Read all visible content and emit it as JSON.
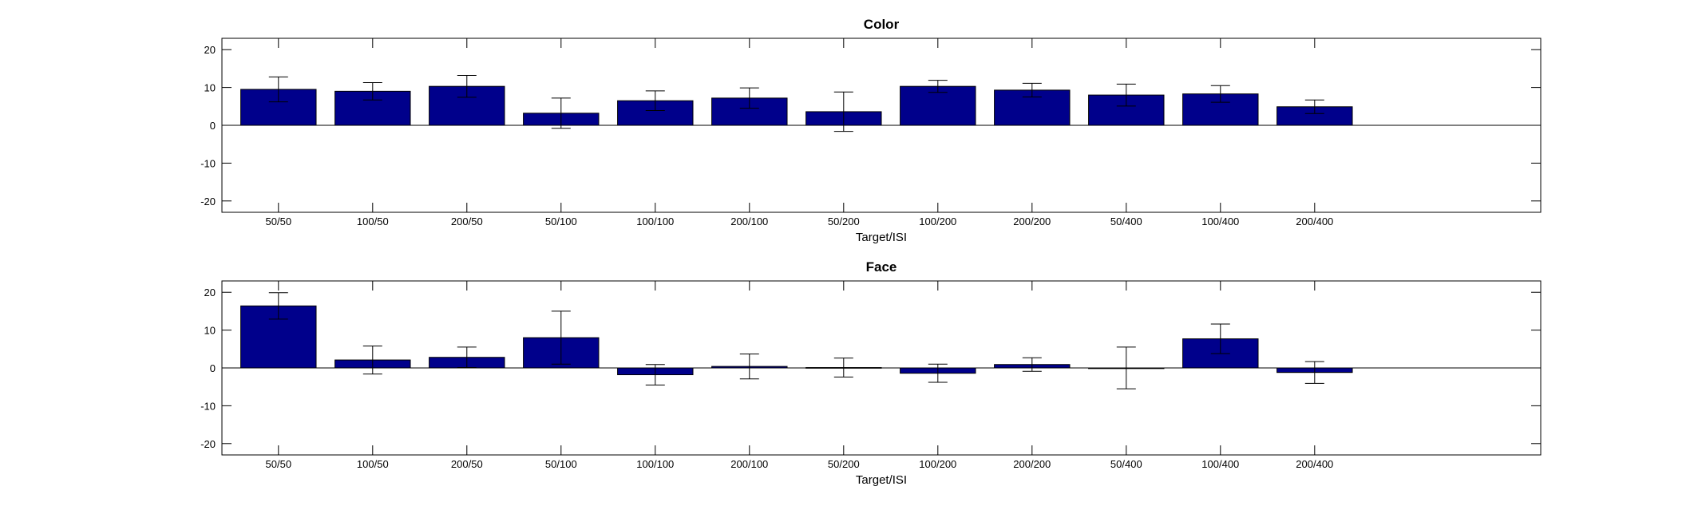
{
  "chart_data": [
    {
      "type": "bar",
      "title": "Color",
      "xlabel": "Target/ISI",
      "ylabel": "",
      "ylim": [
        -23,
        23
      ],
      "yticks": [
        -20,
        -10,
        0,
        10,
        20
      ],
      "xlim": [
        0.4,
        14.4
      ],
      "categories": [
        "50/50",
        "100/50",
        "200/50",
        "50/100",
        "100/100",
        "200/100",
        "50/200",
        "100/200",
        "200/200",
        "50/400",
        "100/400",
        "200/400"
      ],
      "values": [
        9.5,
        9.0,
        10.3,
        3.2,
        6.5,
        7.2,
        3.6,
        10.3,
        9.3,
        8.0,
        8.3,
        4.9
      ],
      "errors": [
        3.3,
        2.3,
        2.9,
        4.0,
        2.6,
        2.7,
        5.2,
        1.6,
        1.8,
        2.9,
        2.2,
        1.8
      ],
      "bar_color": "#00008B",
      "grid": false
    },
    {
      "type": "bar",
      "title": "Face",
      "xlabel": "Target/ISI",
      "ylabel": "",
      "ylim": [
        -23,
        23
      ],
      "yticks": [
        -20,
        -10,
        0,
        10,
        20
      ],
      "xlim": [
        0.4,
        14.4
      ],
      "categories": [
        "50/50",
        "100/50",
        "200/50",
        "50/100",
        "100/100",
        "200/100",
        "50/200",
        "100/200",
        "200/200",
        "50/400",
        "100/400",
        "200/400"
      ],
      "values": [
        16.4,
        2.1,
        2.8,
        8.0,
        -1.8,
        0.4,
        0.1,
        -1.4,
        0.9,
        0.0,
        7.7,
        -1.2
      ],
      "errors": [
        3.5,
        3.7,
        2.7,
        7.0,
        2.7,
        3.3,
        2.5,
        2.4,
        1.8,
        5.5,
        3.9,
        2.9
      ],
      "bar_color": "#00008B",
      "grid": false
    }
  ]
}
